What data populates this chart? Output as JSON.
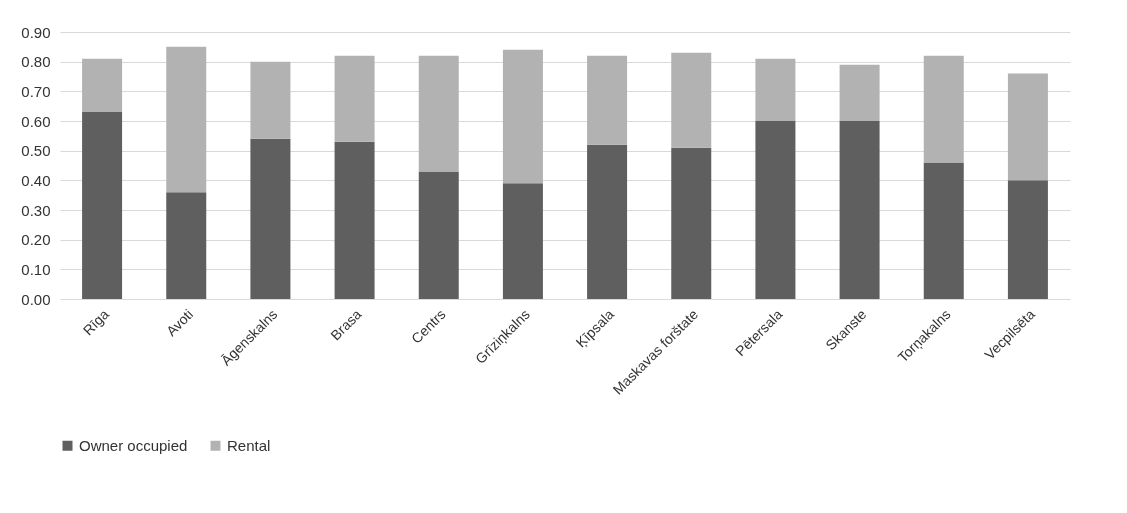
{
  "chart_data": {
    "type": "bar",
    "stacked": true,
    "categories": [
      "Rīga",
      "Avoti",
      "Āgenskalns",
      "Brasa",
      "Centrs",
      "Grīziņkalns",
      "Ķīpsala",
      "Maskavas forštate",
      "Pētersala",
      "Skanste",
      "Torņakalns",
      "Vecpilsēta"
    ],
    "series": [
      {
        "name": "Owner occupied",
        "color": "#5f5f5f",
        "values": [
          0.63,
          0.36,
          0.54,
          0.53,
          0.43,
          0.39,
          0.52,
          0.51,
          0.6,
          0.6,
          0.46,
          0.4
        ]
      },
      {
        "name": "Rental",
        "color": "#b2b2b2",
        "values": [
          0.18,
          0.49,
          0.26,
          0.29,
          0.39,
          0.45,
          0.3,
          0.32,
          0.21,
          0.19,
          0.36,
          0.36
        ]
      }
    ],
    "ylim": [
      0,
      0.9
    ],
    "yticks": [
      {
        "value": 0,
        "label": "0.00"
      },
      {
        "value": 0.1,
        "label": "0.10"
      },
      {
        "value": 0.2,
        "label": "0.20"
      },
      {
        "value": 0.3,
        "label": "0.30"
      },
      {
        "value": 0.4,
        "label": "0.40"
      },
      {
        "value": 0.5,
        "label": "0.50"
      },
      {
        "value": 0.6,
        "label": "0.60"
      },
      {
        "value": 0.7,
        "label": "0.70"
      },
      {
        "value": 0.8,
        "label": "0.80"
      },
      {
        "value": 0.9,
        "label": "0.90"
      }
    ],
    "grid": "y",
    "legend": "bottom"
  }
}
